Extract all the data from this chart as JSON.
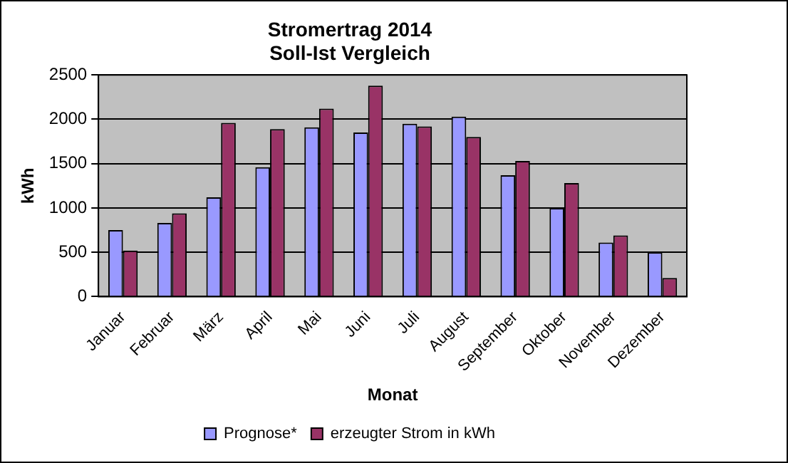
{
  "chart_data": {
    "type": "bar",
    "title": "Stromertrag 2014\nSoll-Ist Vergleich",
    "xlabel": "Monat",
    "ylabel": "kWh",
    "categories": [
      "Januar",
      "Februar",
      "März",
      "April",
      "Mai",
      "Juni",
      "Juli",
      "August",
      "September",
      "Oktober",
      "November",
      "Dezember"
    ],
    "series": [
      {
        "name": "Prognose*",
        "color": "#9999ff",
        "values": [
          750,
          830,
          1120,
          1460,
          1910,
          1850,
          1950,
          2030,
          1370,
          1000,
          610,
          500
        ]
      },
      {
        "name": "erzeugter Strom in kWh",
        "color": "#993366",
        "values": [
          520,
          940,
          1960,
          1890,
          2120,
          2380,
          1920,
          1800,
          1530,
          1280,
          690,
          210
        ]
      }
    ],
    "ylim": [
      0,
      2500
    ],
    "yticks": [
      0,
      500,
      1000,
      1500,
      2000,
      2500
    ],
    "grid": "y",
    "legend": "bottom"
  }
}
